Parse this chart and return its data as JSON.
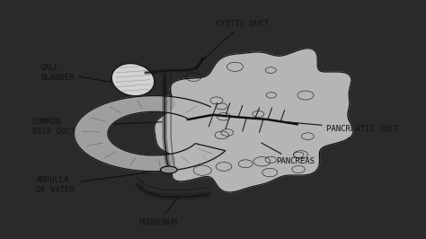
{
  "bg_color": "#2a2a2a",
  "paper_color": "#e0e0e0",
  "draw_color": "#111111",
  "labels": {
    "cystic_duct": "CYSTIC DUCT",
    "gall_bladder": "GALL\nBLADDER",
    "common_bile_duct": "COMMON\nBILE DUCT",
    "ampulla_of_vater": "AMPULLA\nOF VATER",
    "duodenum": "DUODENUM",
    "pancreatic_duct": "PANCREATIC DUCT",
    "pancreas": "PANCREAS"
  },
  "font_size": 6.5,
  "line_width": 0.9
}
